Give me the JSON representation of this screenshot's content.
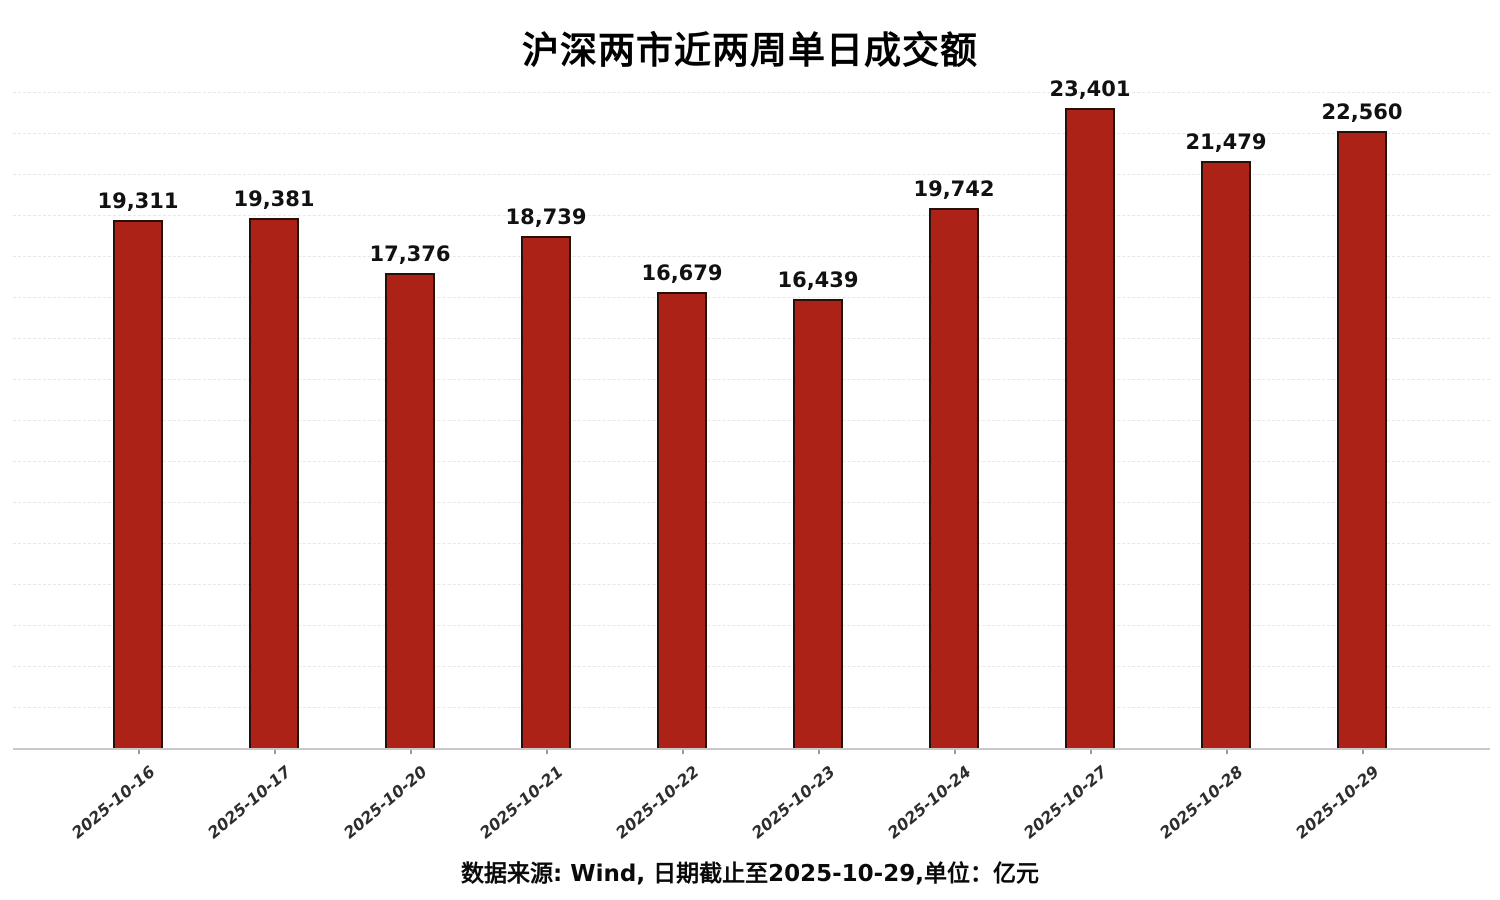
{
  "title": "沪深两市近两周单日成交额",
  "footer": "数据来源: Wind, 日期截止至2025-10-29,单位：亿元",
  "colors": {
    "bar_fill": "#ac2216",
    "bar_edge": "#27100a",
    "gridline": "#e7e7e7",
    "axis_line": "#c9c9c9",
    "tick": "#9a9a9a",
    "label_text": "#111111",
    "date_text": "#2d2d2d"
  },
  "chart_data": {
    "type": "bar",
    "title": "沪深两市近两周单日成交额",
    "xlabel": "",
    "ylabel": "",
    "categories": [
      "2025-10-16",
      "2025-10-17",
      "2025-10-20",
      "2025-10-21",
      "2025-10-22",
      "2025-10-23",
      "2025-10-24",
      "2025-10-27",
      "2025-10-28",
      "2025-10-29"
    ],
    "values": [
      19311,
      19381,
      17376,
      18739,
      16679,
      16439,
      19742,
      23401,
      21479,
      22560
    ],
    "value_labels": [
      "19,311",
      "19,381",
      "17,376",
      "18,739",
      "16,679",
      "16,439",
      "19,742",
      "23,401",
      "21,479",
      "22,560"
    ],
    "ylim": [
      0,
      24000
    ],
    "grid": true,
    "grid_step": 1500,
    "legend": "none",
    "unit": "亿元",
    "source_note": "数据来源: Wind, 日期截止至2025-10-29,单位：亿元"
  }
}
